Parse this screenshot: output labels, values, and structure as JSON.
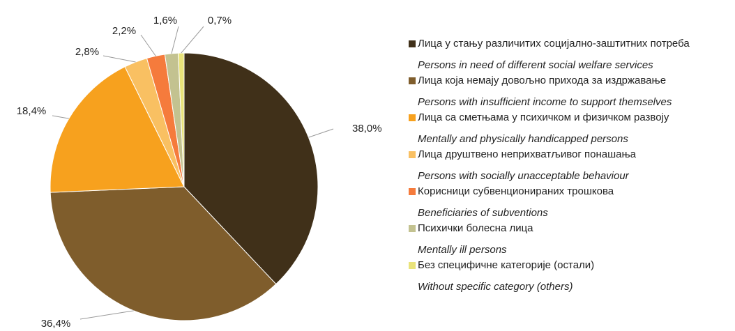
{
  "chart_data": {
    "type": "pie",
    "categories": [
      "Лица у стању различитих социјално-заштитних потреба",
      "Лица која немају довољно прихода за издржавање",
      "Лица са сметњама у психичком и физичком развоју",
      "Лица друштвено неприхватљивог понашања",
      "Корисници субвенционираних трошкова",
      "Психички болесна лица",
      "Без специфичне категорије (остали)"
    ],
    "categories_en": [
      "Persons in need of different social welfare services",
      "Persons with insufficient income to support themselves",
      "Mentally and physically handicapped persons",
      "Persons with socially unacceptable behaviour",
      "Beneficiaries of subventions",
      "Mentally ill persons",
      "Without specific category (others)"
    ],
    "values": [
      38.0,
      36.4,
      18.4,
      2.8,
      2.2,
      1.6,
      0.7
    ],
    "value_labels": [
      "38,0%",
      "36,4%",
      "18,4%",
      "2,8%",
      "2,2%",
      "1,6%",
      "0,7%"
    ],
    "colors": [
      "#403019",
      "#7f5d2c",
      "#f7a11e",
      "#f9c062",
      "#f57b3c",
      "#c3c290",
      "#e9e37a"
    ]
  }
}
